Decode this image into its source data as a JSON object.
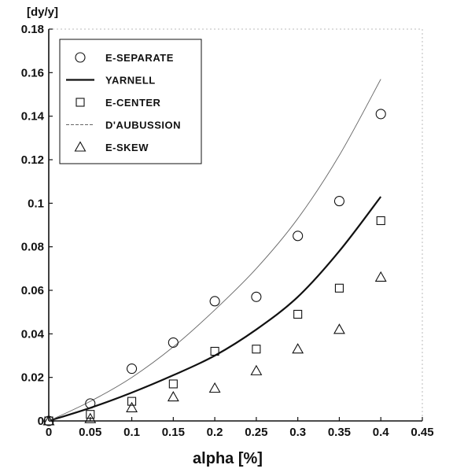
{
  "chart_data": {
    "type": "scatter",
    "ylabel": "[dy/y]",
    "xlabel": "alpha [%]",
    "xlim": [
      0,
      0.45
    ],
    "ylim": [
      0,
      0.18
    ],
    "x_ticks": [
      "0",
      "0.05",
      "0.1",
      "0.15",
      "0.2",
      "0.25",
      "0.3",
      "0.35",
      "0.4",
      "0.45"
    ],
    "y_ticks": [
      "0",
      "0.02",
      "0.04",
      "0.06",
      "0.08",
      "0.1",
      "0.12",
      "0.14",
      "0.16",
      "0.18"
    ],
    "legend_position": "top-left",
    "series": [
      {
        "name": "E-SEPARATE",
        "marker": "circle",
        "x": [
          0,
          0.05,
          0.1,
          0.15,
          0.2,
          0.25,
          0.3,
          0.35,
          0.4
        ],
        "y": [
          0,
          0.008,
          0.024,
          0.036,
          0.055,
          0.057,
          0.085,
          0.101,
          0.141
        ]
      },
      {
        "name": "YARNELL",
        "line": "solid",
        "x": [
          0,
          0.05,
          0.1,
          0.15,
          0.2,
          0.25,
          0.3,
          0.35,
          0.4
        ],
        "y": [
          0,
          0.006,
          0.013,
          0.021,
          0.03,
          0.042,
          0.057,
          0.078,
          0.103
        ]
      },
      {
        "name": "E-CENTER",
        "marker": "square",
        "x": [
          0,
          0.05,
          0.1,
          0.15,
          0.2,
          0.25,
          0.3,
          0.35,
          0.4
        ],
        "y": [
          0,
          0.003,
          0.009,
          0.017,
          0.032,
          0.033,
          0.049,
          0.061,
          0.092
        ]
      },
      {
        "name": "D'AUBUSSION",
        "line": "thin",
        "x": [
          0,
          0.05,
          0.1,
          0.15,
          0.2,
          0.25,
          0.3,
          0.35,
          0.4
        ],
        "y": [
          0,
          0.009,
          0.02,
          0.034,
          0.051,
          0.07,
          0.093,
          0.122,
          0.157
        ]
      },
      {
        "name": "E-SKEW",
        "marker": "triangle",
        "x": [
          0,
          0.05,
          0.1,
          0.15,
          0.2,
          0.25,
          0.3,
          0.35,
          0.4
        ],
        "y": [
          0,
          0.001,
          0.006,
          0.011,
          0.015,
          0.023,
          0.033,
          0.042,
          0.066
        ]
      }
    ]
  },
  "colors": {
    "ink": "#111111",
    "thin_line": "#666666"
  }
}
